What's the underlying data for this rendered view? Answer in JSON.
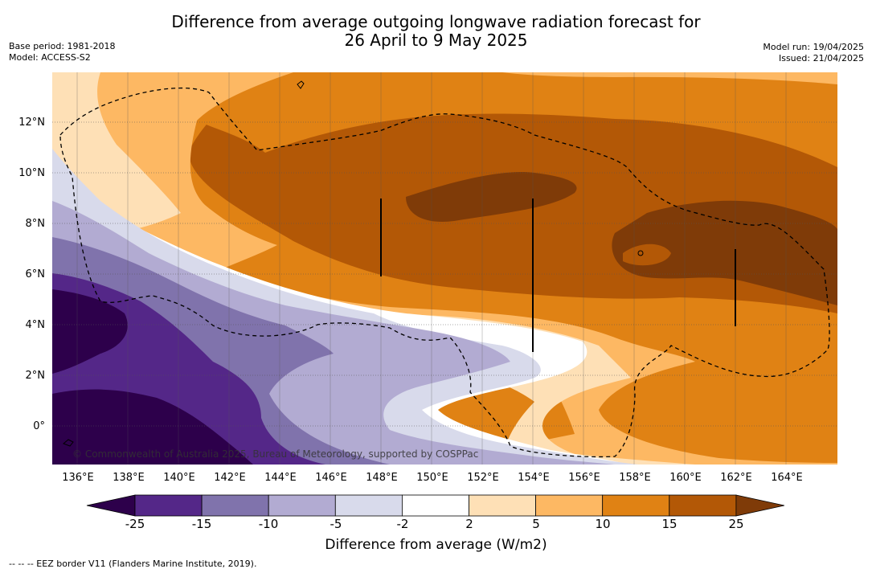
{
  "title_line1": "Difference from average outgoing longwave radiation forecast for",
  "title_line2": "26 April to 9 May 2025",
  "meta_left": [
    "Base period: 1981-2018",
    "Model: ACCESS-S2"
  ],
  "meta_right": [
    "Model run: 19/04/2025",
    "Issued: 21/04/2025"
  ],
  "credit": "© Commonwealth of Australia 2025, Bureau of Meteorology, supported by COSPPac",
  "lat_labels": [
    "12°N",
    "10°N",
    "8°N",
    "6°N",
    "4°N",
    "2°N",
    "0°"
  ],
  "lon_labels": [
    "136°E",
    "138°E",
    "140°E",
    "142°E",
    "144°E",
    "146°E",
    "148°E",
    "150°E",
    "152°E",
    "154°E",
    "156°E",
    "158°E",
    "160°E",
    "162°E",
    "164°E"
  ],
  "colorbar": {
    "ticks": [
      "-25",
      "-15",
      "-10",
      "-5",
      "-2",
      "2",
      "5",
      "10",
      "15",
      "25"
    ],
    "colors": [
      "#2d004b",
      "#542788",
      "#8073ac",
      "#b2abd2",
      "#d8daeb",
      "#ffffff",
      "#fee0b6",
      "#fdb863",
      "#e08214",
      "#b35806",
      "#7f3b08"
    ],
    "label": "Difference from average (W/m2)"
  },
  "footnote": "--  --  -- EEZ border V11 (Flanders Marine Institute, 2019)."
}
